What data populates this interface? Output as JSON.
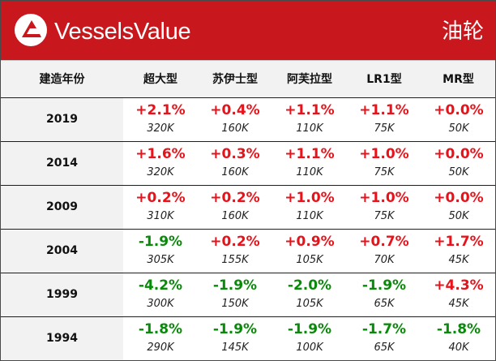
{
  "header": {
    "brand": "VesselsValue",
    "vessel_type": "油轮",
    "logo_icon": "vesselsvalue-triangle-logo-icon",
    "colors": {
      "banner": "#c8181e",
      "positive": "#e8121a",
      "negative": "#0a8a0a"
    }
  },
  "table": {
    "columns": [
      "建造年份",
      "超大型",
      "苏伊士型",
      "阿芙拉型",
      "LR1型",
      "MR型"
    ],
    "rows": [
      {
        "year": "2019",
        "cells": [
          {
            "change": "+2.1%",
            "size": "320K",
            "trend": "up"
          },
          {
            "change": "+0.4%",
            "size": "160K",
            "trend": "up"
          },
          {
            "change": "+1.1%",
            "size": "110K",
            "trend": "up"
          },
          {
            "change": "+1.1%",
            "size": "75K",
            "trend": "up"
          },
          {
            "change": "+0.0%",
            "size": "50K",
            "trend": "up"
          }
        ]
      },
      {
        "year": "2014",
        "cells": [
          {
            "change": "+1.6%",
            "size": "320K",
            "trend": "up"
          },
          {
            "change": "+0.3%",
            "size": "160K",
            "trend": "up"
          },
          {
            "change": "+1.1%",
            "size": "110K",
            "trend": "up"
          },
          {
            "change": "+1.0%",
            "size": "75K",
            "trend": "up"
          },
          {
            "change": "+0.0%",
            "size": "50K",
            "trend": "up"
          }
        ]
      },
      {
        "year": "2009",
        "cells": [
          {
            "change": "+0.2%",
            "size": "310K",
            "trend": "up"
          },
          {
            "change": "+0.2%",
            "size": "160K",
            "trend": "up"
          },
          {
            "change": "+1.0%",
            "size": "110K",
            "trend": "up"
          },
          {
            "change": "+1.0%",
            "size": "75K",
            "trend": "up"
          },
          {
            "change": "+0.0%",
            "size": "50K",
            "trend": "up"
          }
        ]
      },
      {
        "year": "2004",
        "cells": [
          {
            "change": "-1.9%",
            "size": "305K",
            "trend": "down"
          },
          {
            "change": "+0.2%",
            "size": "155K",
            "trend": "up"
          },
          {
            "change": "+0.9%",
            "size": "105K",
            "trend": "up"
          },
          {
            "change": "+0.7%",
            "size": "70K",
            "trend": "up"
          },
          {
            "change": "+1.7%",
            "size": "45K",
            "trend": "up"
          }
        ]
      },
      {
        "year": "1999",
        "cells": [
          {
            "change": "-4.2%",
            "size": "300K",
            "trend": "down"
          },
          {
            "change": "-1.9%",
            "size": "150K",
            "trend": "down"
          },
          {
            "change": "-2.0%",
            "size": "105K",
            "trend": "down"
          },
          {
            "change": "-1.9%",
            "size": "65K",
            "trend": "down"
          },
          {
            "change": "+4.3%",
            "size": "45K",
            "trend": "up"
          }
        ]
      },
      {
        "year": "1994",
        "cells": [
          {
            "change": "-1.8%",
            "size": "290K",
            "trend": "down"
          },
          {
            "change": "-1.9%",
            "size": "145K",
            "trend": "down"
          },
          {
            "change": "-1.9%",
            "size": "100K",
            "trend": "down"
          },
          {
            "change": "-1.7%",
            "size": "65K",
            "trend": "down"
          },
          {
            "change": "-1.8%",
            "size": "40K",
            "trend": "down"
          }
        ]
      }
    ]
  }
}
